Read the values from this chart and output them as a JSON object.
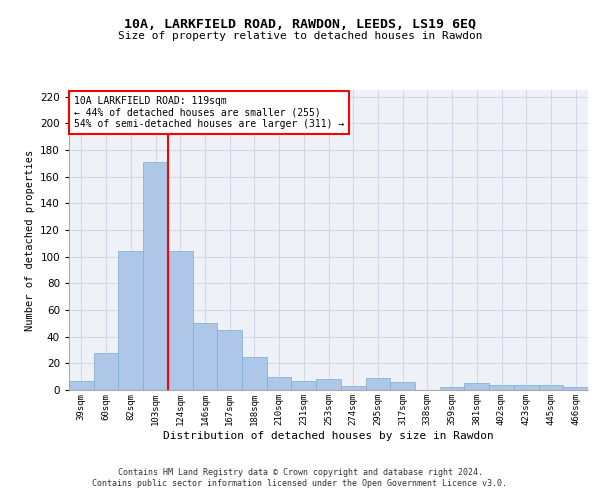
{
  "title1": "10A, LARKFIELD ROAD, RAWDON, LEEDS, LS19 6EQ",
  "title2": "Size of property relative to detached houses in Rawdon",
  "xlabel": "Distribution of detached houses by size in Rawdon",
  "ylabel": "Number of detached properties",
  "categories": [
    "39sqm",
    "60sqm",
    "82sqm",
    "103sqm",
    "124sqm",
    "146sqm",
    "167sqm",
    "188sqm",
    "210sqm",
    "231sqm",
    "253sqm",
    "274sqm",
    "295sqm",
    "317sqm",
    "338sqm",
    "359sqm",
    "381sqm",
    "402sqm",
    "423sqm",
    "445sqm",
    "466sqm"
  ],
  "values": [
    7,
    28,
    104,
    171,
    104,
    50,
    45,
    25,
    10,
    7,
    8,
    3,
    9,
    6,
    0,
    2,
    5,
    4,
    4,
    4,
    2
  ],
  "bar_color": "#aec6e8",
  "bar_edge_color": "#7aaed0",
  "grid_color": "#d0d8e8",
  "background_color": "#eef2f8",
  "annotation_line1": "10A LARKFIELD ROAD: 119sqm",
  "annotation_line2": "← 44% of detached houses are smaller (255)",
  "annotation_line3": "54% of semi-detached houses are larger (311) →",
  "red_line_x": 3.5,
  "ylim": [
    0,
    225
  ],
  "yticks": [
    0,
    20,
    40,
    60,
    80,
    100,
    120,
    140,
    160,
    180,
    200,
    220
  ],
  "footer_line1": "Contains HM Land Registry data © Crown copyright and database right 2024.",
  "footer_line2": "Contains public sector information licensed under the Open Government Licence v3.0."
}
